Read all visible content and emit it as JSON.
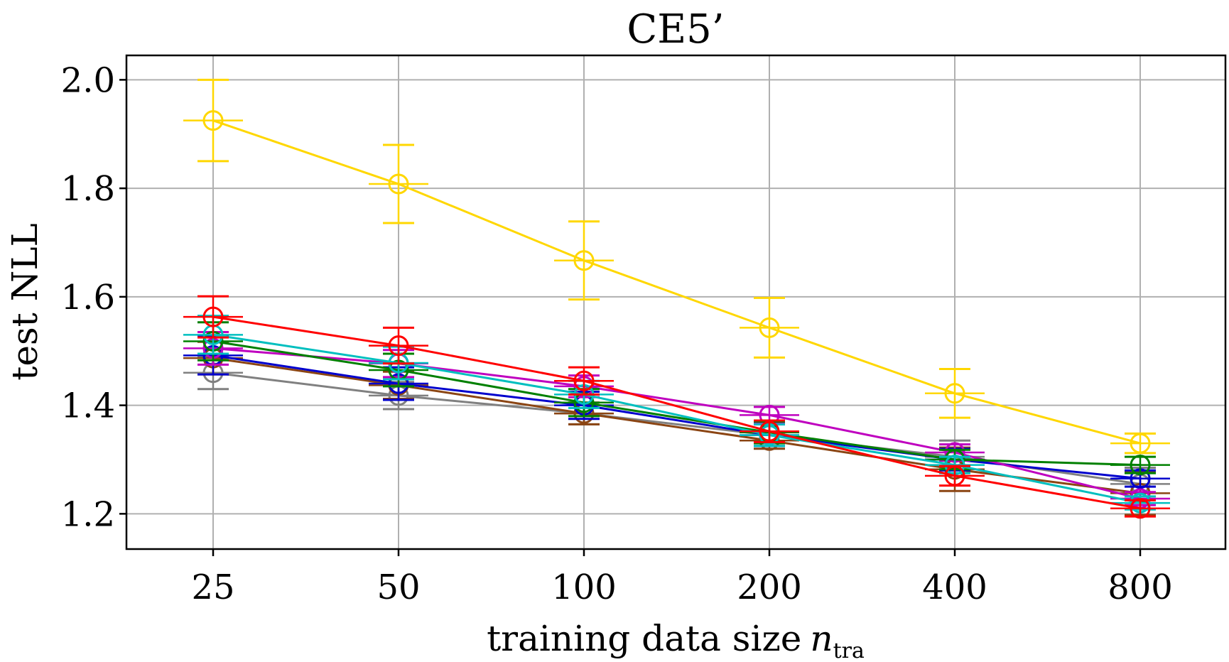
{
  "chart_data": {
    "type": "line",
    "title": "CE5’",
    "xlabel": "training data size",
    "xlabel_var": "n",
    "xlabel_sub": "tra",
    "ylabel": "test NLL",
    "categories": [
      "25",
      "50",
      "100",
      "200",
      "400",
      "800"
    ],
    "ylim": [
      1.135,
      2.045
    ],
    "yticks": [
      1.2,
      1.4,
      1.6,
      1.8,
      2.0
    ],
    "ytick_labels": [
      "1.2",
      "1.4",
      "1.6",
      "1.8",
      "2.0"
    ],
    "grid": true,
    "markers": "open-circle",
    "error_bars": true,
    "series": [
      {
        "name": "yellow",
        "color": "#FFD700",
        "values": [
          1.925,
          1.808,
          1.667,
          1.543,
          1.422,
          1.33
        ],
        "errors": [
          0.075,
          0.072,
          0.072,
          0.055,
          0.045,
          0.018
        ]
      },
      {
        "name": "red",
        "color": "#FF0000",
        "values": [
          1.563,
          1.51,
          1.445,
          1.352,
          1.27,
          1.21
        ],
        "errors": [
          0.038,
          0.033,
          0.025,
          0.02,
          0.018,
          0.015
        ]
      },
      {
        "name": "cyan",
        "color": "#00BFBF",
        "values": [
          1.53,
          1.478,
          1.42,
          1.345,
          1.29,
          1.22
        ],
        "errors": [
          0.035,
          0.03,
          0.025,
          0.02,
          0.015,
          0.012
        ]
      },
      {
        "name": "green",
        "color": "#008000",
        "values": [
          1.518,
          1.465,
          1.405,
          1.35,
          1.3,
          1.29
        ],
        "errors": [
          0.035,
          0.03,
          0.025,
          0.02,
          0.018,
          0.015
        ]
      },
      {
        "name": "magenta",
        "color": "#BF00BF",
        "values": [
          1.505,
          1.477,
          1.435,
          1.382,
          1.313,
          1.228
        ],
        "errors": [
          0.03,
          0.025,
          0.02,
          0.015,
          0.015,
          0.012
        ]
      },
      {
        "name": "blue",
        "color": "#0000CD",
        "values": [
          1.492,
          1.44,
          1.4,
          1.345,
          1.3,
          1.265
        ],
        "errors": [
          0.035,
          0.03,
          0.025,
          0.02,
          0.02,
          0.015
        ]
      },
      {
        "name": "brown",
        "color": "#8B4513",
        "values": [
          1.487,
          1.437,
          1.385,
          1.335,
          1.282,
          1.238
        ],
        "errors": [
          0.03,
          0.025,
          0.02,
          0.015,
          0.04,
          0.04
        ]
      },
      {
        "name": "gray",
        "color": "#808080",
        "values": [
          1.46,
          1.418,
          1.385,
          1.345,
          1.305,
          1.255
        ],
        "errors": [
          0.03,
          0.025,
          0.02,
          0.02,
          0.03,
          0.03
        ]
      }
    ]
  }
}
